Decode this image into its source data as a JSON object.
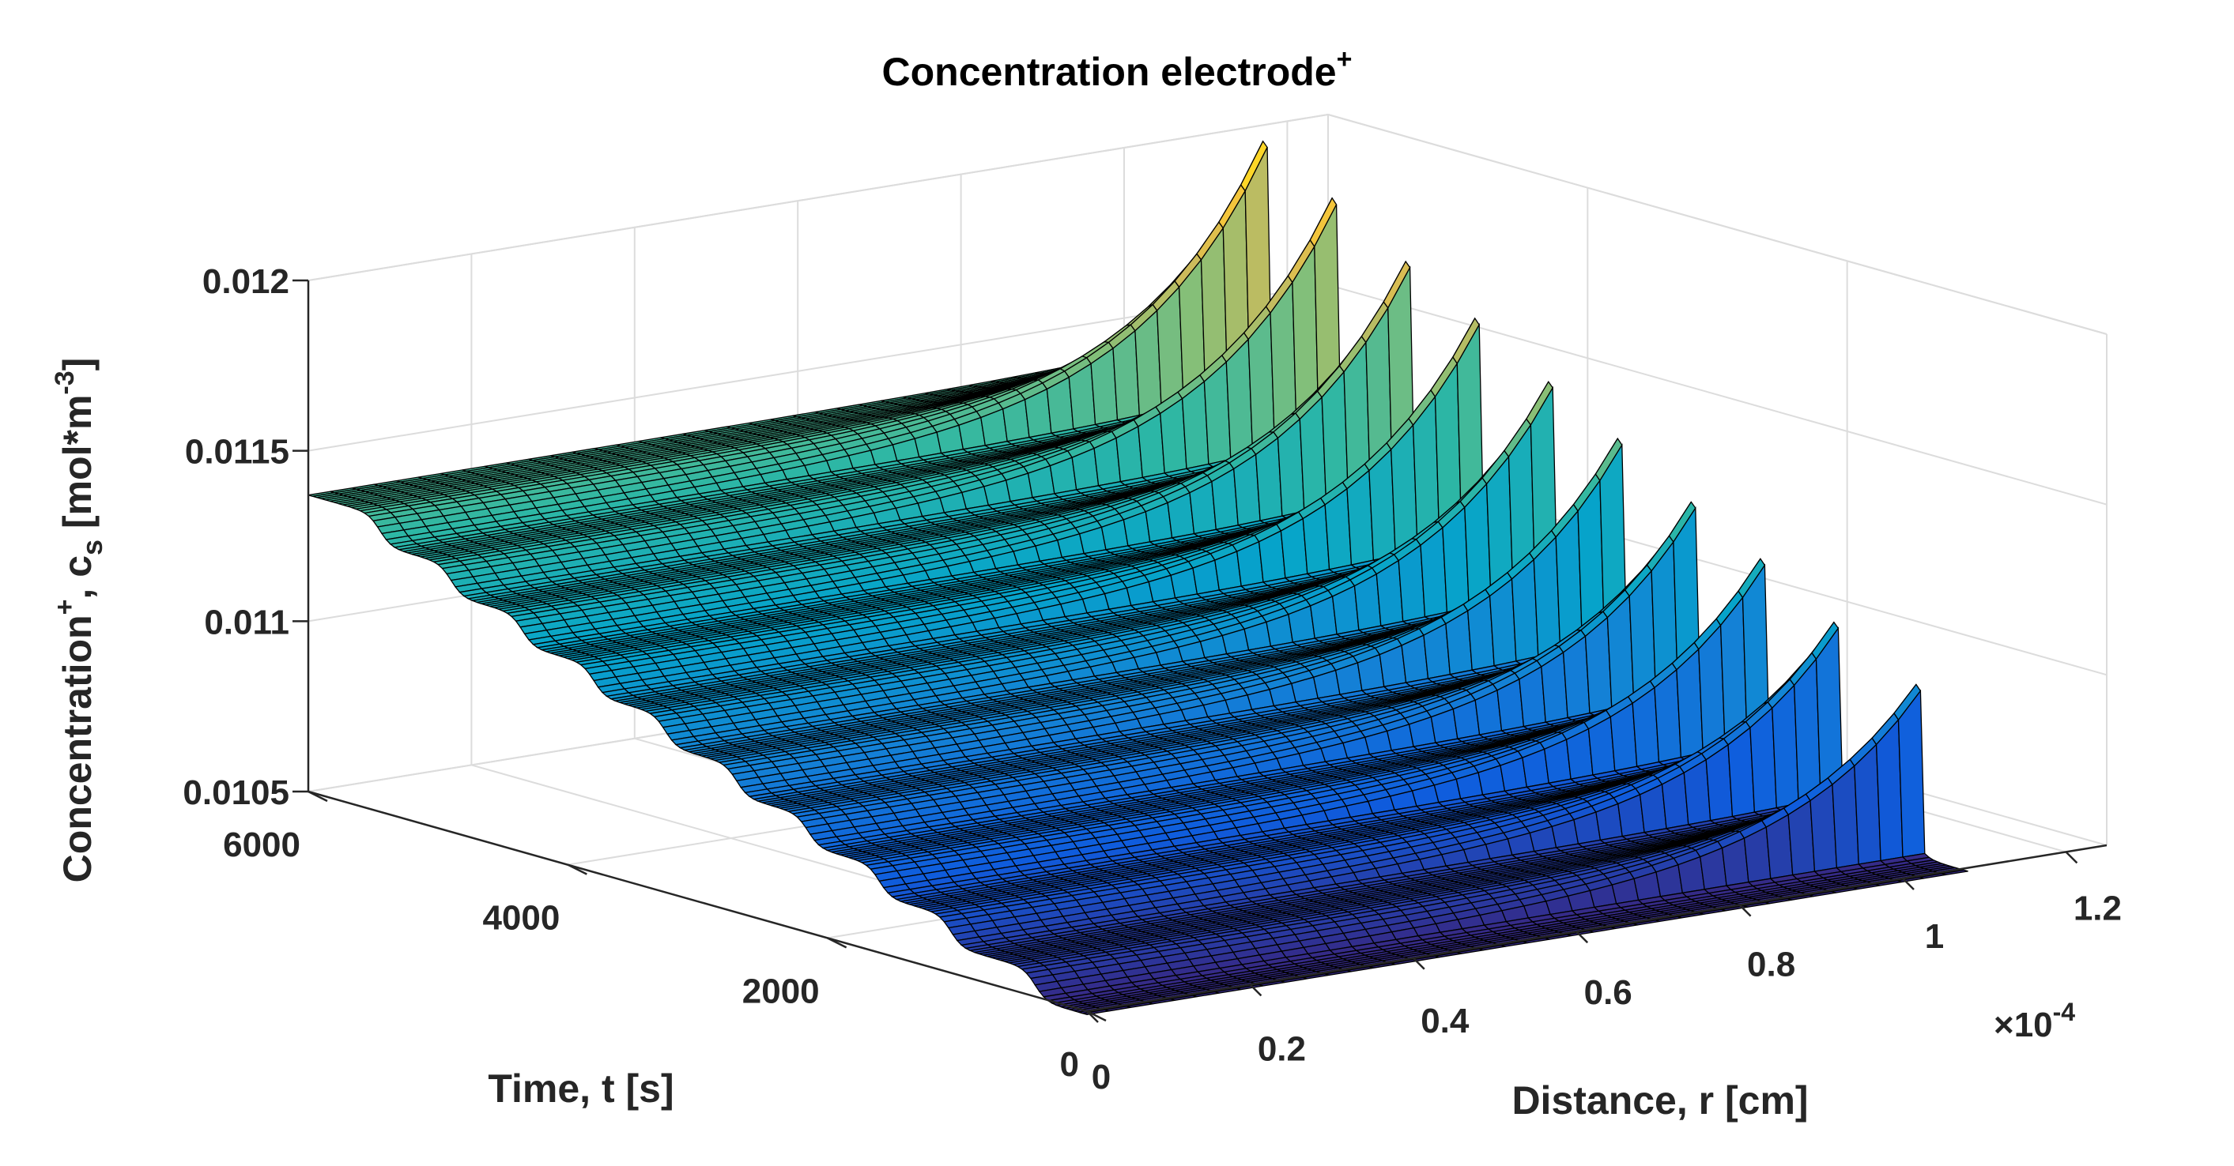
{
  "chart_data": {
    "type": "surface",
    "title": "Concentration electrode",
    "title_superscript": "+",
    "xlabel": "Distance, r [cm]",
    "ylabel": "Time, t [s]",
    "zlabel_main": "Concentration",
    "zlabel_sup": "+",
    "zlabel_sep": ", c",
    "zlabel_sub": "s",
    "zlabel_unit_pre": " [mol*m",
    "zlabel_unit_sup": "-3",
    "zlabel_unit_post": "]",
    "x_exponent_text": "×10",
    "x_exponent_sup": "-4",
    "x_ticks": [
      0,
      0.2,
      0.4,
      0.6,
      0.8,
      1,
      1.2
    ],
    "x_tick_labels": [
      "0",
      "0.2",
      "0.4",
      "0.6",
      "0.8",
      "1",
      "1.2"
    ],
    "y_ticks": [
      0,
      2000,
      4000,
      6000
    ],
    "y_tick_labels": [
      "0",
      "2000",
      "4000",
      "6000"
    ],
    "z_ticks": [
      0.0105,
      0.011,
      0.0115,
      0.012
    ],
    "z_tick_labels": [
      "0.0105",
      "0.011",
      "0.0115",
      "0.012"
    ],
    "xlim": [
      0,
      1.25
    ],
    "ylim": [
      0,
      6000
    ],
    "zlim": [
      0.0105,
      0.012
    ],
    "x_data_range": [
      0,
      1.08
    ],
    "time_range": [
      0,
      6000
    ],
    "step_times": [
      400,
      1050,
      1600,
      2150,
      2700,
      3250,
      3800,
      4350,
      4900,
      5450
    ],
    "center_concentration_start": 0.01049,
    "center_concentration_end": 0.01137,
    "edge_peak_start": 0.01093,
    "edge_peak_end": 0.01213,
    "colormap": "parula",
    "colormap_stops": [
      "#352a87",
      "#0f5cdd",
      "#1481d6",
      "#06a4ca",
      "#2eb7a4",
      "#87bf77",
      "#d1bb59",
      "#fec832",
      "#f9fb0e"
    ]
  }
}
